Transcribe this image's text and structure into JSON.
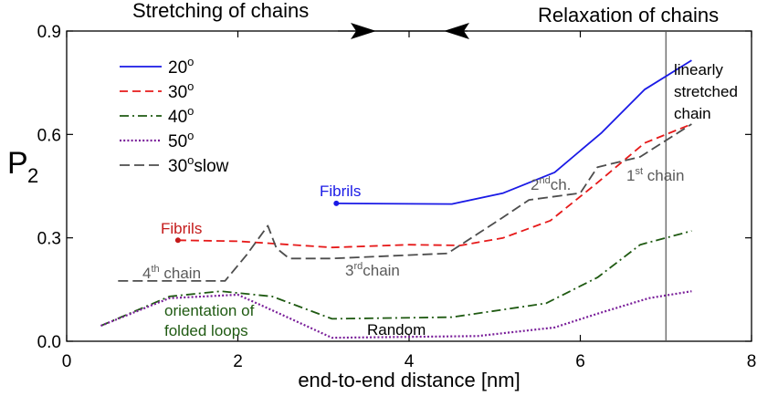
{
  "chart_data": {
    "type": "line",
    "xlabel": "end-to-end distance [nm]",
    "ylabel_main": "P",
    "ylabel_sub": "2",
    "xlim": [
      0,
      8
    ],
    "ylim": [
      0,
      0.9
    ],
    "x_ticks": [
      "0",
      "2",
      "4",
      "6",
      "8"
    ],
    "y_ticks": [
      "0.0",
      "0.3",
      "0.6",
      "0.9"
    ],
    "grid": false,
    "legend_position": "top-left",
    "header_left": "Stretching of chains",
    "header_right": "Relaxation of chains",
    "vertical_line_x": 7.0,
    "series": [
      {
        "name": "20",
        "color": "#1a1ae6",
        "dash": "solid",
        "x": [
          3.15,
          4.5,
          5.1,
          5.7,
          6.25,
          6.75,
          7.3
        ],
        "y": [
          0.4,
          0.398,
          0.43,
          0.49,
          0.605,
          0.73,
          0.815
        ]
      },
      {
        "name": "30",
        "color": "#e61a1a",
        "dash": "dashed",
        "x": [
          1.3,
          2.0,
          3.1,
          4.0,
          4.6,
          5.1,
          5.65,
          6.2,
          6.75,
          7.3
        ],
        "y": [
          0.293,
          0.29,
          0.272,
          0.28,
          0.278,
          0.3,
          0.35,
          0.46,
          0.575,
          0.63
        ]
      },
      {
        "name": "40",
        "color": "#1f5a12",
        "dash": "dashdot",
        "x": [
          0.4,
          1.2,
          1.8,
          2.4,
          3.1,
          4.5,
          5.6,
          6.2,
          6.7,
          7.3
        ],
        "y": [
          0.045,
          0.13,
          0.145,
          0.13,
          0.065,
          0.07,
          0.11,
          0.185,
          0.28,
          0.32
        ]
      },
      {
        "name": "50",
        "color": "#7a1f9a",
        "dash": "dotted",
        "x": [
          0.4,
          1.2,
          2.0,
          2.4,
          3.1,
          4.8,
          5.7,
          6.2,
          6.8,
          7.3
        ],
        "y": [
          0.045,
          0.125,
          0.135,
          0.09,
          0.01,
          0.015,
          0.04,
          0.08,
          0.125,
          0.145
        ]
      },
      {
        "name": "30",
        "name_suffix": "slow",
        "color": "#4d4d4d",
        "dash": "longdash",
        "x": [
          0.6,
          1.85,
          2.1,
          2.35,
          2.45,
          2.6,
          3.1,
          4.45,
          5.1,
          5.4,
          6.0,
          6.2,
          6.7,
          7.3
        ],
        "y": [
          0.175,
          0.175,
          0.25,
          0.335,
          0.27,
          0.24,
          0.24,
          0.255,
          0.36,
          0.41,
          0.43,
          0.505,
          0.535,
          0.63
        ]
      }
    ],
    "legend_degree": "o",
    "annotations": [
      {
        "text": "Fibrils",
        "x": 3.15,
        "y": 0.4,
        "color": "#1a1ae6",
        "marker": true
      },
      {
        "text": "Fibrils",
        "x": 1.3,
        "y": 0.293,
        "color": "#c41a1a",
        "marker": true
      },
      {
        "text": "linearly",
        "color": "#000000"
      },
      {
        "text": "stretched",
        "color": "#000000"
      },
      {
        "text": "chain",
        "color": "#000000"
      },
      {
        "text": "2",
        "sup": "nd",
        "tail": "ch.",
        "color": "#5a5a5a"
      },
      {
        "text": "1",
        "sup": "st",
        "tail": " chain",
        "color": "#5a5a5a"
      },
      {
        "text": "3",
        "sup": "rd",
        "tail": "chain",
        "color": "#5a5a5a"
      },
      {
        "text": "4",
        "sup": "th",
        "tail": " chain",
        "color": "#5a5a5a"
      },
      {
        "text": "orientation of",
        "color": "#1f5a12"
      },
      {
        "text": "folded loops",
        "color": "#1f5a12"
      },
      {
        "text": "Random",
        "color": "#000000"
      }
    ]
  }
}
